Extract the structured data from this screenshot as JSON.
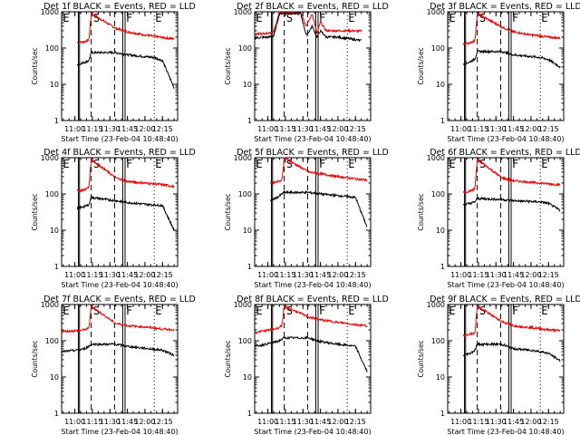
{
  "chart_data": {
    "type": "line",
    "panel_count": 9,
    "y_scale": "log",
    "ylim": [
      1,
      1000
    ],
    "y_ticks": [
      1,
      10,
      100,
      1000
    ],
    "y_tick_labels": [
      "1",
      "10",
      "100",
      "1000"
    ],
    "ylabel": "Counts/sec",
    "xlim": [
      "10:48:40",
      "12:28:00"
    ],
    "x_ticks": [
      "11:00",
      "11:15",
      "11:30",
      "11:45",
      "12:00",
      "12:15"
    ],
    "xlabel": "Start Time (23-Feb-04 10:48:40)",
    "grid": false,
    "series_colors": {
      "events": "#000000",
      "lld": "#ee0000"
    },
    "series_names": [
      "BLACK = Events",
      "RED = LLD"
    ],
    "marker_labels": [
      "E",
      "S",
      "F",
      "E"
    ],
    "vertical_markers": {
      "solid": [
        "11:03",
        "11:04",
        "11:41",
        "11:43"
      ],
      "dashed": [
        "11:14",
        "11:34"
      ],
      "dotted": [
        "12:08"
      ]
    },
    "panels": [
      {
        "title": "Det 1f BLACK = Events, RED = LLD",
        "x": [
          "11:02",
          "11:08",
          "11:12",
          "11:14",
          "11:35",
          "11:45",
          "12:00",
          "12:08",
          "12:15",
          "12:25"
        ],
        "lld": [
          140,
          150,
          165,
          900,
          350,
          280,
          230,
          210,
          195,
          180
        ],
        "events": [
          35,
          40,
          45,
          75,
          75,
          65,
          58,
          55,
          45,
          8
        ]
      },
      {
        "title": "Det 2f BLACK = Events, RED = LLD",
        "x": [
          "10:49",
          "11:00",
          "11:05",
          "11:10",
          "11:14",
          "11:28",
          "11:33",
          "11:38",
          "11:42",
          "11:45",
          "11:50",
          "12:00",
          "12:10",
          "12:20"
        ],
        "lld": [
          240,
          260,
          280,
          1000,
          900,
          1000,
          400,
          900,
          250,
          520,
          300,
          300,
          300,
          290
        ],
        "events": [
          190,
          200,
          210,
          900,
          900,
          900,
          220,
          400,
          200,
          300,
          200,
          200,
          180,
          160
        ]
      },
      {
        "title": "Det 3f BLACK = Events, RED = LLD",
        "x": [
          "11:02",
          "11:08",
          "11:12",
          "11:14",
          "11:35",
          "11:45",
          "12:00",
          "12:08",
          "12:15",
          "12:25"
        ],
        "lld": [
          130,
          140,
          160,
          900,
          380,
          280,
          230,
          215,
          200,
          190
        ],
        "events": [
          35,
          42,
          50,
          80,
          80,
          65,
          58,
          55,
          48,
          30
        ]
      },
      {
        "title": "Det 4f BLACK = Events, RED = LLD",
        "x": [
          "11:02",
          "11:08",
          "11:12",
          "11:14",
          "11:35",
          "11:45",
          "12:00",
          "12:08",
          "12:15",
          "12:25"
        ],
        "lld": [
          120,
          130,
          150,
          900,
          280,
          220,
          200,
          190,
          180,
          160
        ],
        "events": [
          40,
          45,
          50,
          80,
          65,
          58,
          52,
          50,
          48,
          10
        ]
      },
      {
        "title": "Det 5f BLACK = Events, RED = LLD",
        "x": [
          "11:02",
          "11:08",
          "11:12",
          "11:14",
          "11:35",
          "11:45",
          "12:00",
          "12:08",
          "12:15",
          "12:25"
        ],
        "lld": [
          200,
          220,
          240,
          1000,
          400,
          360,
          300,
          280,
          260,
          240
        ],
        "events": [
          65,
          80,
          100,
          110,
          110,
          100,
          90,
          85,
          80,
          12
        ]
      },
      {
        "title": "Det 6f BLACK = Events, RED = LLD",
        "x": [
          "11:02",
          "11:08",
          "11:12",
          "11:14",
          "11:35",
          "11:45",
          "12:00",
          "12:08",
          "12:15",
          "12:25"
        ],
        "lld": [
          110,
          120,
          140,
          900,
          280,
          230,
          210,
          200,
          190,
          180
        ],
        "events": [
          50,
          55,
          60,
          75,
          70,
          65,
          62,
          60,
          55,
          35
        ]
      },
      {
        "title": "Det 7f BLACK = Events, RED = LLD",
        "x": [
          "10:49",
          "11:02",
          "11:08",
          "11:12",
          "11:14",
          "11:35",
          "11:45",
          "12:00",
          "12:08",
          "12:15",
          "12:25"
        ],
        "lld": [
          180,
          190,
          200,
          220,
          900,
          300,
          260,
          240,
          225,
          210,
          200
        ],
        "events": [
          50,
          55,
          60,
          70,
          80,
          80,
          70,
          62,
          58,
          55,
          40
        ]
      },
      {
        "title": "Det 8f BLACK = Events, RED = LLD",
        "x": [
          "10:49",
          "11:02",
          "11:08",
          "11:12",
          "11:14",
          "11:35",
          "11:45",
          "12:00",
          "12:08",
          "12:15",
          "12:25"
        ],
        "lld": [
          170,
          200,
          220,
          260,
          900,
          450,
          380,
          320,
          300,
          280,
          260
        ],
        "events": [
          70,
          85,
          95,
          110,
          120,
          120,
          95,
          80,
          75,
          70,
          14
        ]
      },
      {
        "title": "Det 9f BLACK = Events, RED = LLD",
        "x": [
          "11:02",
          "11:08",
          "11:12",
          "11:14",
          "11:35",
          "11:45",
          "12:00",
          "12:08",
          "12:15",
          "12:25"
        ],
        "lld": [
          140,
          150,
          170,
          900,
          340,
          260,
          230,
          215,
          200,
          190
        ],
        "events": [
          40,
          45,
          55,
          80,
          80,
          60,
          55,
          50,
          45,
          28
        ]
      }
    ]
  }
}
